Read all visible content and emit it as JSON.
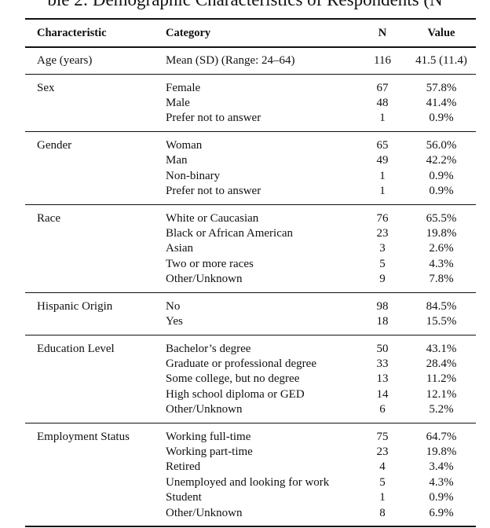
{
  "header": {
    "caption": "ble 2: Demographic Characteristics of Respondents (N"
  },
  "table": {
    "columns": [
      "Characteristic",
      "Category",
      "N",
      "Value"
    ],
    "groups": [
      {
        "characteristic": "Age (years)",
        "rows": [
          [
            "Mean (SD) (Range: 24–64)",
            116,
            "41.5 (11.4)"
          ]
        ]
      },
      {
        "characteristic": "Sex",
        "rows": [
          [
            "Female",
            67,
            "57.8%"
          ],
          [
            "Male",
            48,
            "41.4%"
          ],
          [
            "Prefer not to answer",
            1,
            "0.9%"
          ]
        ]
      },
      {
        "characteristic": "Gender",
        "rows": [
          [
            "Woman",
            65,
            "56.0%"
          ],
          [
            "Man",
            49,
            "42.2%"
          ],
          [
            "Non-binary",
            1,
            "0.9%"
          ],
          [
            "Prefer not to answer",
            1,
            "0.9%"
          ]
        ]
      },
      {
        "characteristic": "Race",
        "rows": [
          [
            "White or Caucasian",
            76,
            "65.5%"
          ],
          [
            "Black or African American",
            23,
            "19.8%"
          ],
          [
            "Asian",
            3,
            "2.6%"
          ],
          [
            "Two or more races",
            5,
            "4.3%"
          ],
          [
            "Other/Unknown",
            9,
            "7.8%"
          ]
        ]
      },
      {
        "characteristic": "Hispanic Origin",
        "rows": [
          [
            "No",
            98,
            "84.5%"
          ],
          [
            "Yes",
            18,
            "15.5%"
          ]
        ]
      },
      {
        "characteristic": "Education Level",
        "rows": [
          [
            "Bachelor’s degree",
            50,
            "43.1%"
          ],
          [
            "Graduate or professional degree",
            33,
            "28.4%"
          ],
          [
            "Some college, but no degree",
            13,
            "11.2%"
          ],
          [
            "High school diploma or GED",
            14,
            "12.1%"
          ],
          [
            "Other/Unknown",
            6,
            "5.2%"
          ]
        ]
      },
      {
        "characteristic": "Employment Status",
        "rows": [
          [
            "Working full-time",
            75,
            "64.7%"
          ],
          [
            "Working part-time",
            23,
            "19.8%"
          ],
          [
            "Retired",
            4,
            "3.4%"
          ],
          [
            "Unemployed and looking for work",
            5,
            "4.3%"
          ],
          [
            "Student",
            1,
            "0.9%"
          ],
          [
            "Other/Unknown",
            8,
            "6.9%"
          ]
        ]
      }
    ]
  }
}
